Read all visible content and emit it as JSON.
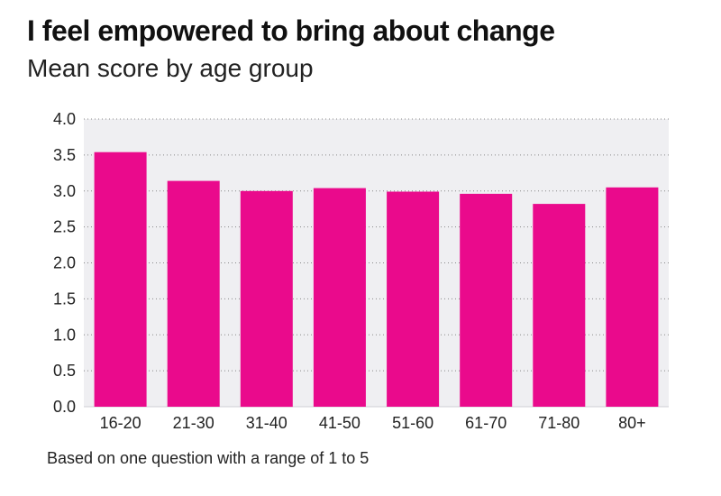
{
  "header": {
    "title": "I feel empowered to bring about change",
    "subtitle": "Mean score by age group"
  },
  "footnote": "Based on one question with a  range of 1 to 5",
  "colors": {
    "bar": "#ea0a8c",
    "plot_background": "#efeff2",
    "grid": "#888888"
  },
  "chart_data": {
    "type": "bar",
    "title": "I feel empowered to bring about change",
    "subtitle": "Mean score by age group",
    "xlabel": "",
    "ylabel": "",
    "categories": [
      "16-20",
      "21-30",
      "31-40",
      "41-50",
      "51-60",
      "61-70",
      "71-80",
      "80+"
    ],
    "values": [
      3.54,
      3.14,
      3.0,
      3.04,
      2.99,
      2.96,
      2.82,
      3.05
    ],
    "ylim": [
      0,
      4.0
    ],
    "yticks": [
      "0.0",
      "0.5",
      "1.0",
      "1.5",
      "2.0",
      "2.5",
      "3.0",
      "3.5",
      "4.0"
    ],
    "grid": "horizontal dotted",
    "legend": "none"
  }
}
